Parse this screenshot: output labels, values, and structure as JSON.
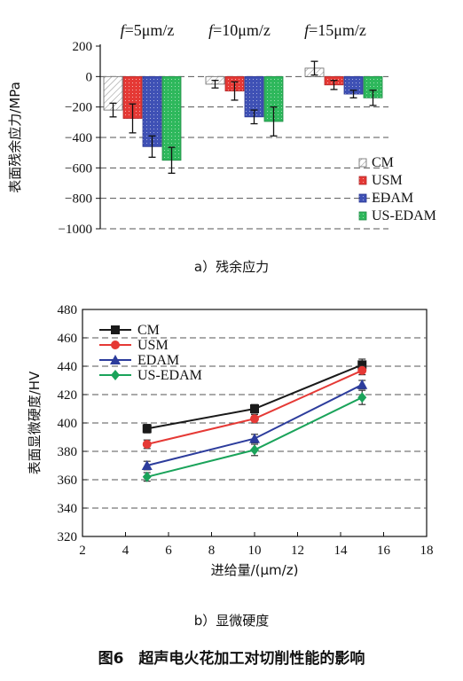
{
  "figure_caption": "图6　超声电火花加工对切削性能的影响",
  "chart_data": [
    {
      "type": "bar",
      "subcaption": "a）残余应力",
      "ylabel": "表面残余应力/MPa",
      "ylim": [
        -1000,
        200
      ],
      "yticks": [
        200,
        0,
        -200,
        -400,
        -600,
        -800,
        -1000
      ],
      "ytick_labels": [
        "200",
        "0",
        "−200",
        "−400",
        "−600",
        "−800",
        "−1000"
      ],
      "groups": [
        "f=5μm/z",
        "f=10μm/z",
        "f=15μm/z"
      ],
      "group_label_prefix": "f",
      "group_label_rest": [
        "=5μm/z",
        "=10μm/z",
        "=15μm/z"
      ],
      "grid": "dashed horizontal",
      "legend_position": "right",
      "series": [
        {
          "name": "CM",
          "color": "#ffffff",
          "pattern": "hatch",
          "values": [
            -220,
            -50,
            55
          ],
          "errors": [
            45,
            25,
            45
          ]
        },
        {
          "name": "USM",
          "color": "#e53935",
          "pattern": "dots",
          "values": [
            -275,
            -95,
            -55
          ],
          "errors": [
            95,
            60,
            30
          ]
        },
        {
          "name": "EDAM",
          "color": "#3f51b5",
          "pattern": "dots",
          "values": [
            -460,
            -265,
            -115
          ],
          "errors": [
            70,
            45,
            25
          ]
        },
        {
          "name": "US-EDAM",
          "color": "#2eb85c",
          "pattern": "dots",
          "values": [
            -550,
            -295,
            -140
          ],
          "errors": [
            85,
            95,
            50
          ]
        }
      ]
    },
    {
      "type": "line",
      "subcaption": "b）显微硬度",
      "xlabel": "进给量/(μm/z)",
      "ylabel": "表面显微硬度/HV",
      "xlim": [
        2,
        18
      ],
      "ylim": [
        320,
        480
      ],
      "xticks": [
        2,
        4,
        6,
        8,
        10,
        12,
        14,
        16,
        18
      ],
      "yticks": [
        320,
        340,
        360,
        380,
        400,
        420,
        440,
        460,
        480
      ],
      "grid": "dashed horizontal",
      "legend_position": "top-left",
      "x": [
        5,
        10,
        15
      ],
      "series": [
        {
          "name": "CM",
          "color": "#1a1a1a",
          "marker": "square",
          "values": [
            396,
            410,
            441
          ],
          "errors": [
            3,
            3,
            4
          ]
        },
        {
          "name": "USM",
          "color": "#e53935",
          "marker": "circle",
          "values": [
            385,
            403,
            437
          ],
          "errors": [
            3,
            3,
            3
          ]
        },
        {
          "name": "EDAM",
          "color": "#2c3c9c",
          "marker": "triangle",
          "values": [
            370,
            389,
            427
          ],
          "errors": [
            3,
            3,
            3
          ]
        },
        {
          "name": "US-EDAM",
          "color": "#1aa35a",
          "marker": "diamond",
          "values": [
            362,
            381,
            418
          ],
          "errors": [
            3,
            4,
            5
          ]
        }
      ]
    }
  ]
}
